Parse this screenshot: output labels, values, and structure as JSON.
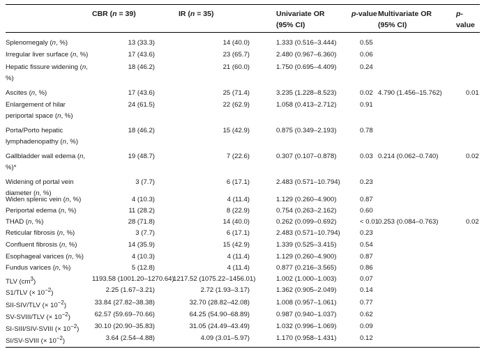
{
  "headers": {
    "cbr_html": "CBR (<i>n</i> = 39)",
    "ir_html": "IR (<i>n</i> = 35)",
    "uor_line1": "Univariate OR",
    "uor_line2": "(95% CI)",
    "pvalue_html": "<i>p</i>-value",
    "mor_line1": "Multivariate OR",
    "mor_line2": "(95% CI)",
    "mpvalue_html": "<i>p</i>-value"
  },
  "rows": [
    {
      "name_html": "Splenomegaly (<i>n</i>, %)",
      "cbr": "13 (33.3)",
      "ir": "14 (40.0)",
      "uor": "1.333 (0.516–3.444)",
      "p": "0.55",
      "mor": "",
      "mp": ""
    },
    {
      "name_html": "Irregular liver surface (<i>n</i>, %)",
      "cbr": "17 (43.6)",
      "ir": "23 (65.7)",
      "uor": "2.480 (0.967–6.360)",
      "p": "0.06",
      "mor": "",
      "mp": ""
    },
    {
      "name_html": "Hepatic fissure widening (<i>n</i>, %)",
      "cbr": "18 (46.2)",
      "ir": "21 (60.0)",
      "uor": "1.750 (0.695–4.409)",
      "p": "0.24",
      "mor": "",
      "mp": ""
    },
    {
      "name_html": "Ascites (<i>n</i>, %)",
      "cbr": "17 (43.6)",
      "ir": "25 (71.4)",
      "uor": "3.235 (1.228–8.523)",
      "p": "0.02",
      "mor": "4.790 (1.456–15.762)",
      "mp": "0.01"
    },
    {
      "name_html": "Enlargement of hilar periportal space (<i>n</i>, %)",
      "cbr": "24 (61.5)",
      "ir": "22 (62.9)",
      "uor": "1.058 (0.413–2.712)",
      "p": "0.91",
      "mor": "",
      "mp": ""
    },
    {
      "name_html": "Porta/Porto hepatic lymphadenopathy (<i>n</i>, %)",
      "cbr": "18 (46.2)",
      "ir": "15 (42.9)",
      "uor": "0.875 (0.349–2.193)",
      "p": "0.78",
      "mor": "",
      "mp": ""
    },
    {
      "name_html": "Gallbladder wall edema (<i>n</i>, %)*",
      "cbr": "19 (48.7)",
      "ir": "7 (22.6)",
      "uor": "0.307 (0.107–0.878)",
      "p": "0.03",
      "mor": "0.214 (0.062–0.740)",
      "mp": "0.02"
    },
    {
      "name_html": "Widening of portal vein diameter (<i>n</i>, %)",
      "cbr": "3 (7.7)",
      "ir": "6 (17.1)",
      "uor": "2.483 (0.571–10.794)",
      "p": "0.23",
      "mor": "",
      "mp": ""
    },
    {
      "name_html": "Widen splenic vein (<i>n</i>, %)",
      "cbr": "4 (10.3)",
      "ir": "4 (11.4)",
      "uor": "1.129 (0.260–4.900)",
      "p": "0.87",
      "mor": "",
      "mp": ""
    },
    {
      "name_html": "Periportal edema (<i>n</i>, %)",
      "cbr": "11 (28.2)",
      "ir": "8 (22.9)",
      "uor": "0.754 (0.263–2.162)",
      "p": "0.60",
      "mor": "",
      "mp": ""
    },
    {
      "name_html": "THAD (<i>n</i>, %)",
      "cbr": "28 (71.8)",
      "ir": "14 (40.0)",
      "uor": "0.262 (0.099–0.692)",
      "p": "< 0.01",
      "mor": "0.253 (0.084–0.763)",
      "mp": "0.02"
    },
    {
      "name_html": "Reticular fibrosis (<i>n</i>, %)",
      "cbr": "3 (7.7)",
      "ir": "6 (17.1)",
      "uor": "2.483 (0.571–10.794)",
      "p": "0.23",
      "mor": "",
      "mp": ""
    },
    {
      "name_html": "Confluent fibrosis (<i>n</i>, %)",
      "cbr": "14 (35.9)",
      "ir": "15 (42.9)",
      "uor": "1.339 (0.525–3.415)",
      "p": "0.54",
      "mor": "",
      "mp": ""
    },
    {
      "name_html": "Esophageal varices (<i>n</i>, %)",
      "cbr": "4 (10.3)",
      "ir": "4 (11.4)",
      "uor": "1.129 (0.260–4.900)",
      "p": "0.87",
      "mor": "",
      "mp": ""
    },
    {
      "name_html": "Fundus varices (<i>n</i>, %)",
      "cbr": "5 (12.8)",
      "ir": "4 (11.4)",
      "uor": "0.877 (0.216–3.565)",
      "p": "0.86",
      "mor": "",
      "mp": ""
    },
    {
      "name_html": "TLV (cm<sup>3</sup>)",
      "cbr": "1193.58 (1001.20–1270.64)",
      "ir": "1217.52 (1075.22–1456.01)",
      "uor": "1.002 (1.000–1.003)",
      "p": "0.07",
      "mor": "",
      "mp": ""
    },
    {
      "name_html": "S1/TLV (× 10<sup>−2</sup>)",
      "cbr": "2.25 (1.67–3.21)",
      "ir": "2.72 (1.93–3.17)",
      "uor": "1.362 (0.905–2.049)",
      "p": "0.14",
      "mor": "",
      "mp": ""
    },
    {
      "name_html": "SII-SIV/TLV (× 10<sup>−2</sup>)",
      "cbr": "33.84 (27.82–38.38)",
      "ir": "32.70 (28.82–42.08)",
      "uor": "1.008 (0.957–1.061)",
      "p": "0.77",
      "mor": "",
      "mp": ""
    },
    {
      "name_html": "SV-SVIII/TLV (× 10<sup>−2</sup>)",
      "cbr": "62.57 (59.69–70.66)",
      "ir": "64.25 (54.90–68.89)",
      "uor": "0.987 (0.940–1.037)",
      "p": "0.62",
      "mor": "",
      "mp": ""
    },
    {
      "name_html": "SI-SIII/SIV-SVIII (× 10<sup>−2</sup>)",
      "cbr": "30.10 (20.90–35.83)",
      "ir": "31.05 (24.49–43.49)",
      "uor": "1.032 (0.996–1.069)",
      "p": "0.09",
      "mor": "",
      "mp": ""
    },
    {
      "name_html": "SI/SV-SVIII (× 10<sup>−2</sup>)",
      "cbr": "3.64 (2.54–4.88)",
      "ir": "4.09 (3.01–5.97)",
      "uor": "1.170 (0.958–1.431)",
      "p": "0.12",
      "mor": "",
      "mp": ""
    }
  ]
}
